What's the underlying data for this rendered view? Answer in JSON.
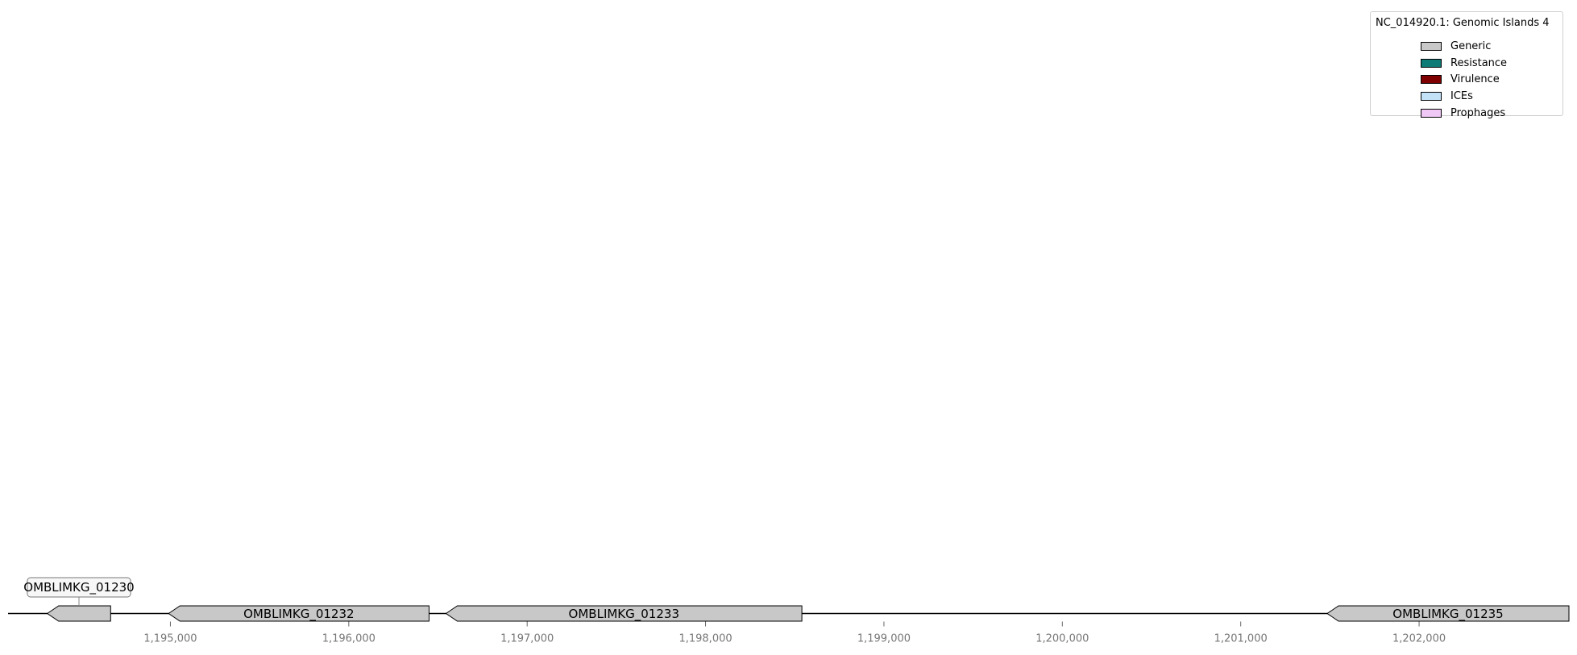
{
  "diagram": {
    "type": "genomic_island_gene_map",
    "axis": {
      "min": 1194090,
      "max": 1202840,
      "ticks": [
        1195000,
        1196000,
        1197000,
        1198000,
        1199000,
        1200000,
        1201000,
        1202000
      ],
      "tick_labels": [
        "1,195,000",
        "1,196,000",
        "1,197,000",
        "1,198,000",
        "1,199,000",
        "1,200,000",
        "1,201,000",
        "1,202,000"
      ]
    },
    "genes": [
      {
        "id": "OMBLIMKG_01230",
        "start": 1194310,
        "end": 1194665,
        "strand": "-",
        "category": "Generic",
        "label_style": "callout"
      },
      {
        "id": "OMBLIMKG_01232",
        "start": 1194990,
        "end": 1196450,
        "strand": "-",
        "category": "Generic",
        "label_style": "inline"
      },
      {
        "id": "OMBLIMKG_01233",
        "start": 1196545,
        "end": 1198540,
        "strand": "-",
        "category": "Generic",
        "label_style": "inline"
      },
      {
        "id": "OMBLIMKG_01235",
        "start": 1201485,
        "end": 1202840,
        "strand": "-",
        "category": "Generic",
        "label_style": "inline"
      }
    ]
  },
  "legend": {
    "title": "NC_014920.1: Genomic Islands 4",
    "items": [
      {
        "label": "Generic",
        "color": "#c8c8c8"
      },
      {
        "label": "Resistance",
        "color": "#0f7b76"
      },
      {
        "label": "Virulence",
        "color": "#7f0000"
      },
      {
        "label": "ICEs",
        "color": "#c3e2f7"
      },
      {
        "label": "Prophages",
        "color": "#efc8f5"
      }
    ]
  }
}
